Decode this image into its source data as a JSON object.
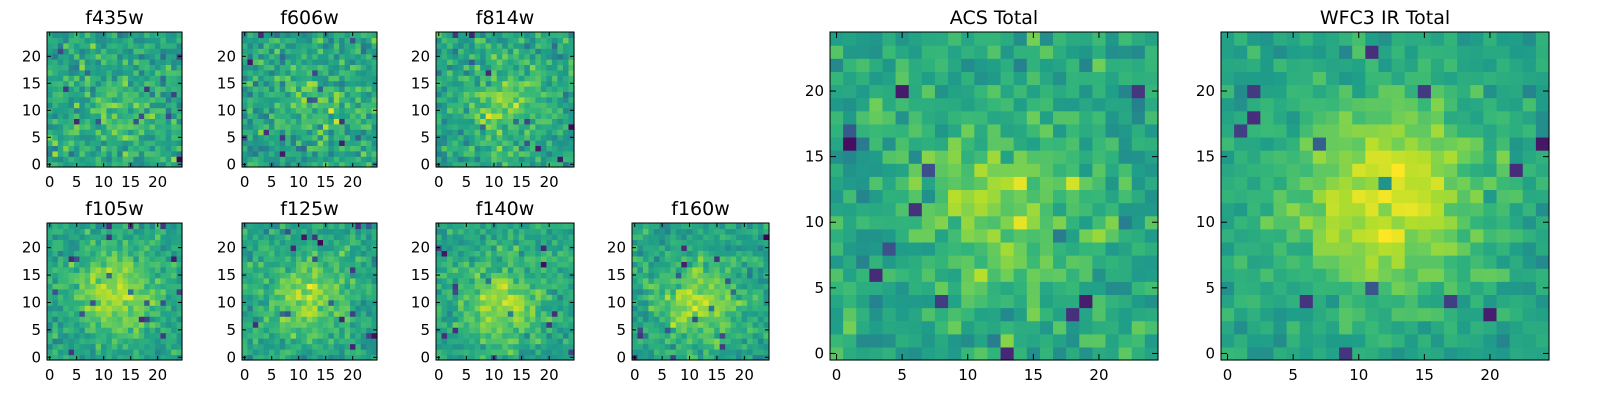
{
  "chart_data": [
    {
      "type": "heatmap",
      "title": "f435w",
      "xticks": [
        "0",
        "5",
        "10",
        "15",
        "20"
      ],
      "yticks": [
        "0",
        "5",
        "10",
        "15",
        "20"
      ],
      "xlim": [
        0,
        25
      ],
      "ylim": [
        0,
        25
      ],
      "grid": false,
      "colormap": "viridis",
      "seed": 435,
      "blob_center": [
        13,
        9
      ],
      "blob_strength": 0.25,
      "noise": 0.85
    },
    {
      "type": "heatmap",
      "title": "f606w",
      "xticks": [
        "0",
        "5",
        "10",
        "15",
        "20"
      ],
      "yticks": [
        "0",
        "5",
        "10",
        "15",
        "20"
      ],
      "xlim": [
        0,
        25
      ],
      "ylim": [
        0,
        25
      ],
      "grid": false,
      "colormap": "viridis",
      "seed": 606,
      "blob_center": [
        13,
        11
      ],
      "blob_strength": 0.3,
      "noise": 0.85
    },
    {
      "type": "heatmap",
      "title": "f814w",
      "xticks": [
        "0",
        "5",
        "10",
        "15",
        "20"
      ],
      "yticks": [
        "0",
        "5",
        "10",
        "15",
        "20"
      ],
      "xlim": [
        0,
        25
      ],
      "ylim": [
        0,
        25
      ],
      "grid": false,
      "colormap": "viridis",
      "seed": 814,
      "blob_center": [
        12,
        11
      ],
      "blob_strength": 0.45,
      "noise": 0.8
    },
    {
      "type": "heatmap",
      "title": "f105w",
      "xticks": [
        "0",
        "5",
        "10",
        "15",
        "20"
      ],
      "yticks": [
        "0",
        "5",
        "10",
        "15",
        "20"
      ],
      "xlim": [
        0,
        25
      ],
      "ylim": [
        0,
        25
      ],
      "grid": false,
      "colormap": "viridis",
      "seed": 105,
      "blob_center": [
        12,
        12
      ],
      "blob_strength": 0.7,
      "noise": 0.6
    },
    {
      "type": "heatmap",
      "title": "f125w",
      "xticks": [
        "0",
        "5",
        "10",
        "15",
        "20"
      ],
      "yticks": [
        "0",
        "5",
        "10",
        "15",
        "20"
      ],
      "xlim": [
        0,
        25
      ],
      "ylim": [
        0,
        25
      ],
      "grid": false,
      "colormap": "viridis",
      "seed": 125,
      "blob_center": [
        12,
        11
      ],
      "blob_strength": 0.6,
      "noise": 0.65
    },
    {
      "type": "heatmap",
      "title": "f140w",
      "xticks": [
        "0",
        "5",
        "10",
        "15",
        "20"
      ],
      "yticks": [
        "0",
        "5",
        "10",
        "15",
        "20"
      ],
      "xlim": [
        0,
        25
      ],
      "ylim": [
        0,
        25
      ],
      "grid": false,
      "colormap": "viridis",
      "seed": 140,
      "blob_center": [
        11,
        10
      ],
      "blob_strength": 0.6,
      "noise": 0.65
    },
    {
      "type": "heatmap",
      "title": "f160w",
      "xticks": [
        "0",
        "5",
        "10",
        "15",
        "20"
      ],
      "yticks": [
        "0",
        "5",
        "10",
        "15",
        "20"
      ],
      "xlim": [
        0,
        25
      ],
      "ylim": [
        0,
        25
      ],
      "grid": false,
      "colormap": "viridis",
      "seed": 160,
      "blob_center": [
        12,
        10
      ],
      "blob_strength": 0.6,
      "noise": 0.65
    },
    {
      "type": "heatmap",
      "title": "ACS Total",
      "xticks": [
        "0",
        "5",
        "10",
        "15",
        "20"
      ],
      "yticks": [
        "0",
        "5",
        "10",
        "15",
        "20"
      ],
      "xlim": [
        0,
        25
      ],
      "ylim": [
        0,
        25
      ],
      "grid": false,
      "colormap": "viridis",
      "seed": 9001,
      "blob_center": [
        13,
        11
      ],
      "blob_strength": 0.5,
      "noise": 0.7
    },
    {
      "type": "heatmap",
      "title": "WFC3 IR Total",
      "xticks": [
        "0",
        "5",
        "10",
        "15",
        "20"
      ],
      "yticks": [
        "0",
        "5",
        "10",
        "15",
        "20"
      ],
      "xlim": [
        0,
        25
      ],
      "ylim": [
        0,
        25
      ],
      "grid": false,
      "colormap": "viridis",
      "seed": 9002,
      "blob_center": [
        12,
        12
      ],
      "blob_strength": 0.85,
      "noise": 0.5
    }
  ]
}
